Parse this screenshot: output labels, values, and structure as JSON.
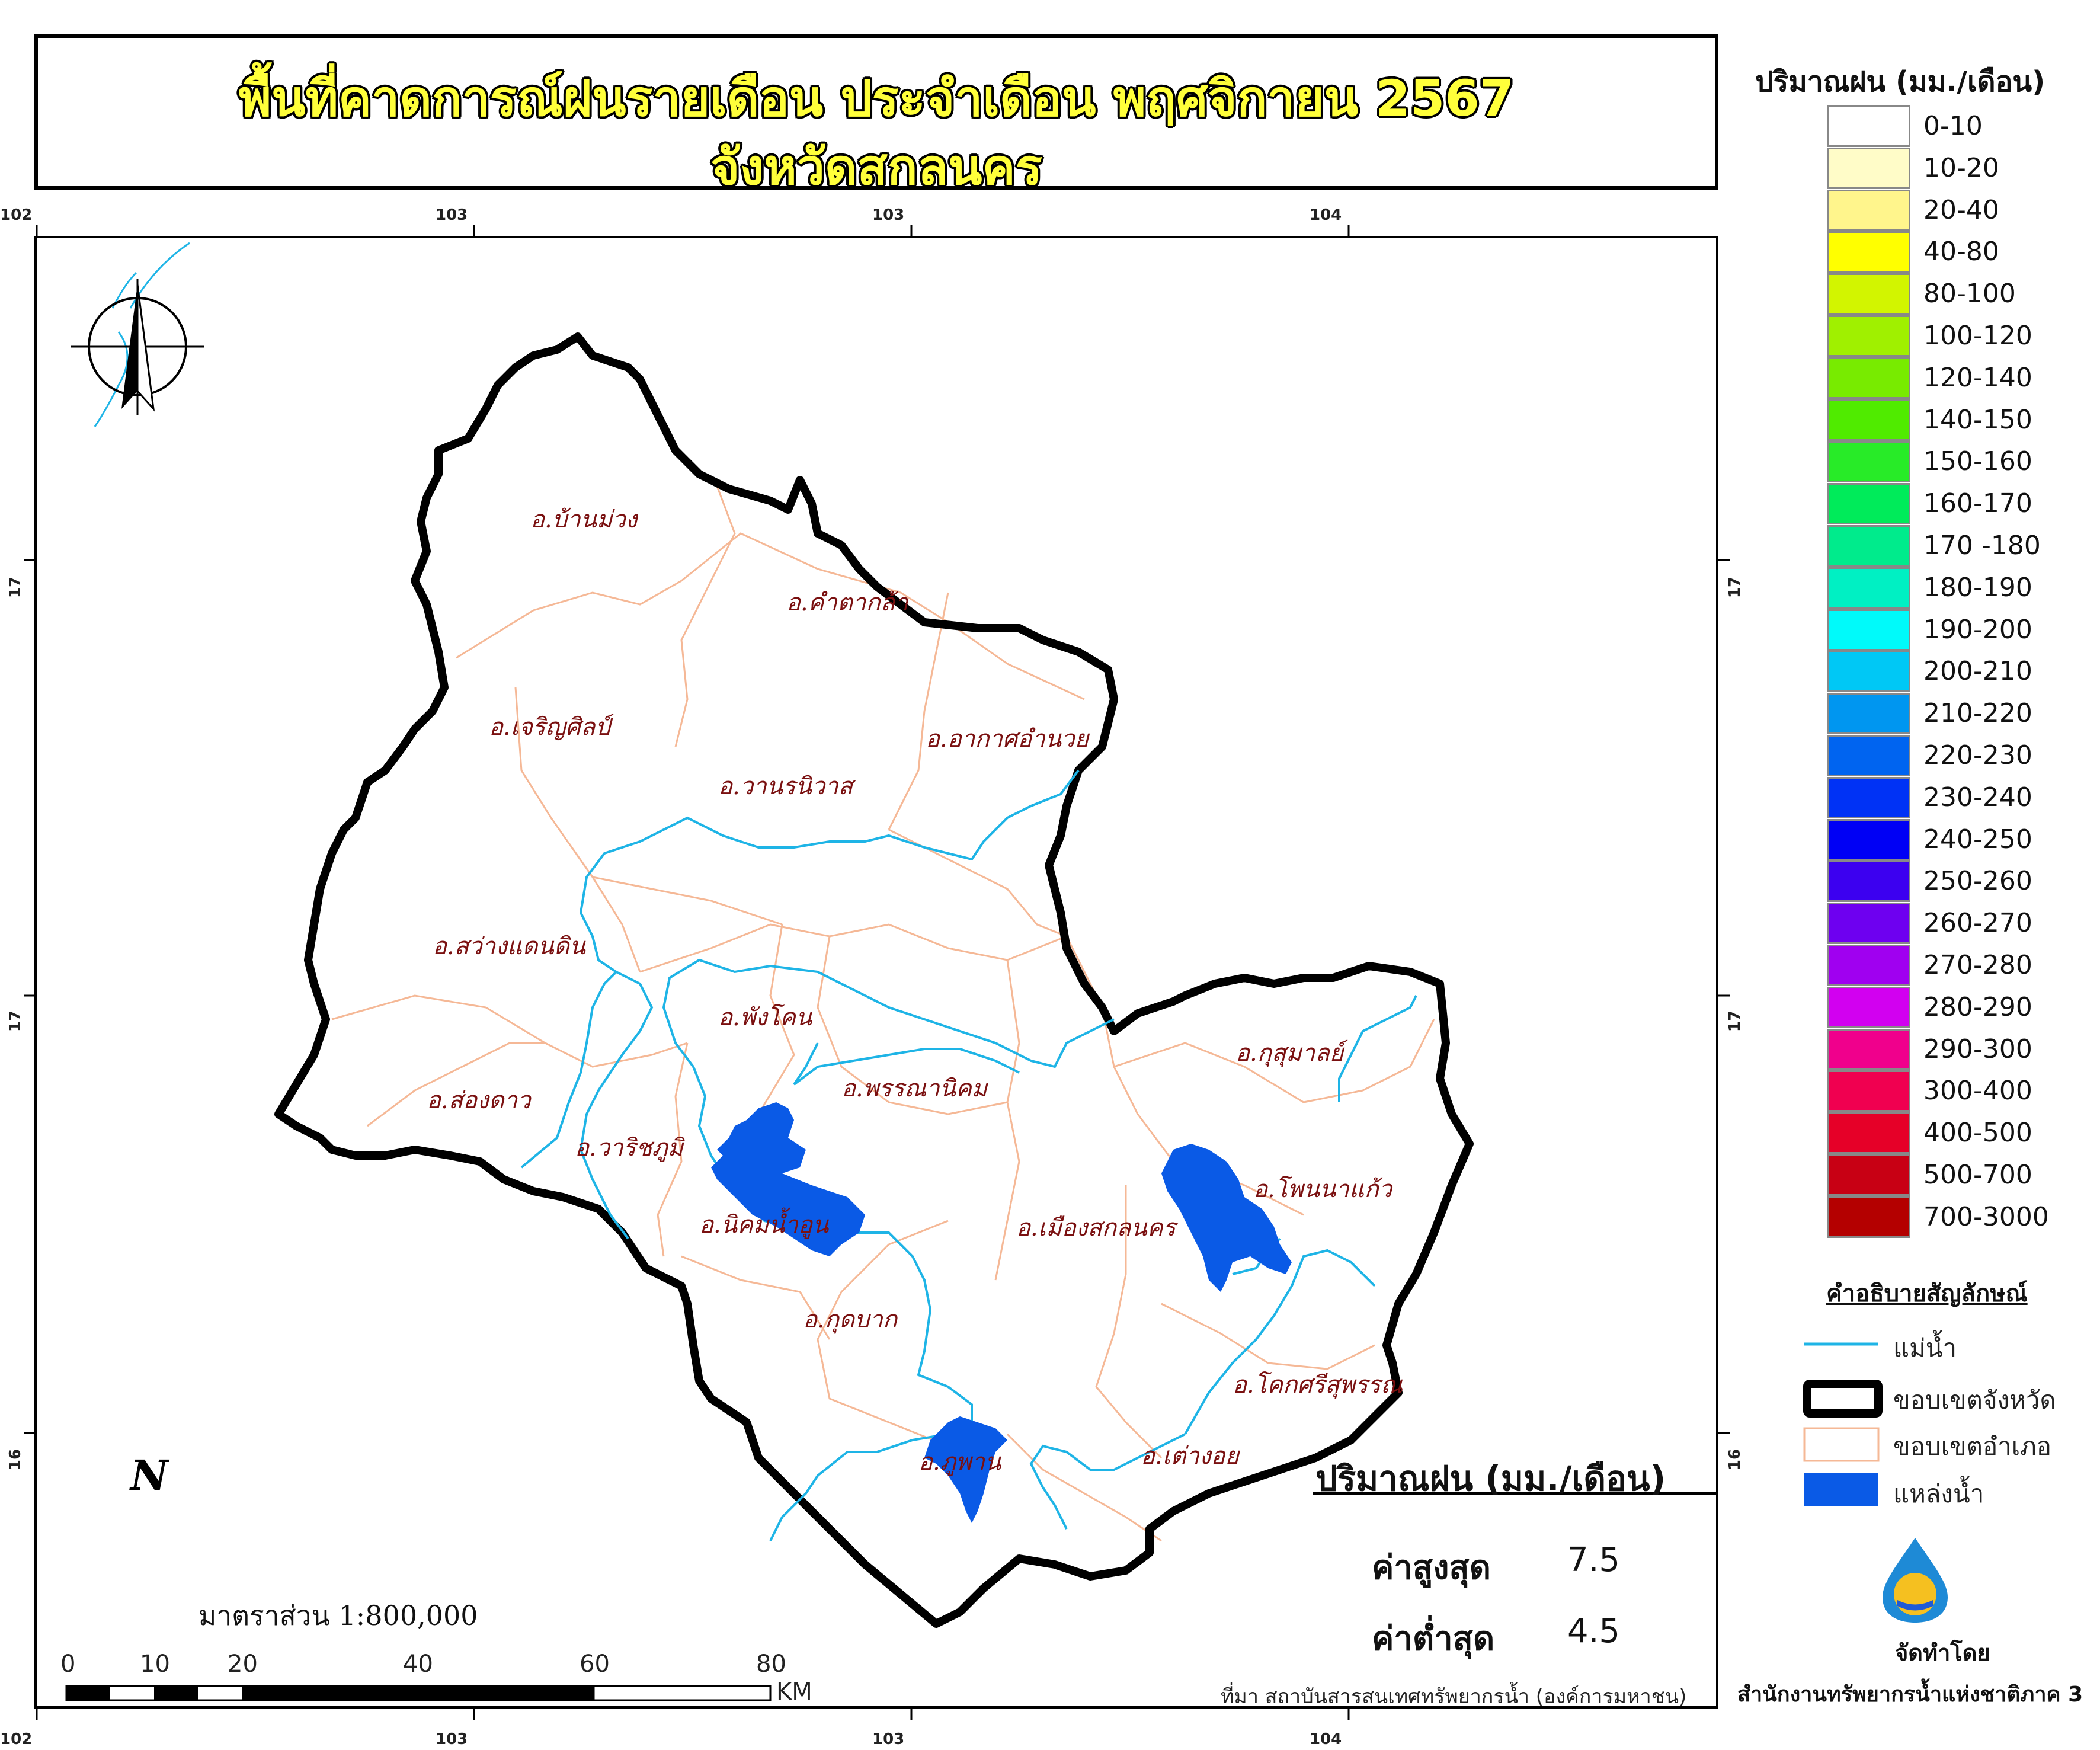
{
  "title": {
    "line1": "พื้นที่คาดการณ์ฝนรายเดือน ประจำเดือน พฤศจิกายน 2567",
    "line2": "จังหวัดสกลนคร"
  },
  "graticule": {
    "top_ticks": [
      "102",
      "103",
      "103",
      "104"
    ],
    "bottom_ticks": [
      "102",
      "103",
      "103",
      "104"
    ],
    "left_ticks": [
      "17",
      "17",
      "16"
    ],
    "right_ticks": [
      "17",
      "17",
      "16"
    ]
  },
  "north_arrow": {
    "label": "N"
  },
  "districts": [
    "อ.บ้านม่วง",
    "อ.คำตากล้า",
    "อ.เจริญศิลป์",
    "อ.อากาศอำนวย",
    "อ.วานรนิวาส",
    "อ.สว่างแดนดิน",
    "อ.พังโคน",
    "อ.ส่องดาว",
    "อ.พรรณานิคม",
    "อ.กุสุมาลย์",
    "อ.วาริชภูมิ",
    "อ.นิคมน้ำอูน",
    "อ.เมืองสกลนคร",
    "อ.โพนนาแก้ว",
    "อ.กุดบาก",
    "อ.โคกศรีสุพรรณ",
    "อ.ภูพาน",
    "อ.เต่างอย"
  ],
  "scale": {
    "text": "มาตราส่วน  1:800,000",
    "ticks": [
      "0",
      "10",
      "20",
      "40",
      "60",
      "80"
    ],
    "unit": "KM"
  },
  "stats": {
    "title": "ปริมาณฝน (มม./เดือน)",
    "max_label": "ค่าสูงสุด",
    "max_value": "7.5",
    "min_label": "ค่าต่ำสุด",
    "min_value": "4.5"
  },
  "source": "ที่มา  สถาบันสารสนเทศทรัพยากรน้ำ (องค์การมหาชน)",
  "legend": {
    "title": "ปริมาณฝน (มม./เดือน)",
    "classes": [
      {
        "label": "0-10",
        "color": "#ffffff"
      },
      {
        "label": "10-20",
        "color": "#fffcc8"
      },
      {
        "label": "20-40",
        "color": "#fff58c"
      },
      {
        "label": "40-80",
        "color": "#ffff00"
      },
      {
        "label": "80-100",
        "color": "#d2f500"
      },
      {
        "label": "100-120",
        "color": "#a0f000"
      },
      {
        "label": "120-140",
        "color": "#78eb00"
      },
      {
        "label": "140-150",
        "color": "#50eb00"
      },
      {
        "label": "150-160",
        "color": "#28eb28"
      },
      {
        "label": "160-170",
        "color": "#00eb5a"
      },
      {
        "label": "170 -180",
        "color": "#00eb8c"
      },
      {
        "label": "180-190",
        "color": "#00f0c3"
      },
      {
        "label": "190-200",
        "color": "#00fafa"
      },
      {
        "label": "200-210",
        "color": "#00c8f5"
      },
      {
        "label": "210-220",
        "color": "#0096f0"
      },
      {
        "label": "220-230",
        "color": "#0064f0"
      },
      {
        "label": "230-240",
        "color": "#0032f5"
      },
      {
        "label": "240-250",
        "color": "#0000f5"
      },
      {
        "label": "250-260",
        "color": "#3c00f0"
      },
      {
        "label": "260-270",
        "color": "#6e00f0"
      },
      {
        "label": "270-280",
        "color": "#a000f0"
      },
      {
        "label": "280-290",
        "color": "#d200f0"
      },
      {
        "label": "290-300",
        "color": "#f0008c"
      },
      {
        "label": "300-400",
        "color": "#f00050"
      },
      {
        "label": "400-500",
        "color": "#e60028"
      },
      {
        "label": "500-700",
        "color": "#c80014"
      },
      {
        "label": "700-3000",
        "color": "#b40000"
      }
    ]
  },
  "symbols": {
    "title": "คำอธิบายสัญลักษณ์",
    "river": "แม่น้ำ",
    "province": "ขอบเขตจังหวัด",
    "district": "ขอบเขตอำเภอ",
    "water": "แหล่งน้ำ"
  },
  "colors": {
    "river": "#1eb4e6",
    "water_body": "#0a5ae6",
    "province_border": "#000000",
    "district_border": "#f5b896",
    "district_label": "#7a1010"
  },
  "producer": {
    "made_by": "จัดทำโดย",
    "office": "สำนักงานทรัพยากรน้ำแห่งชาติภาค 3"
  }
}
